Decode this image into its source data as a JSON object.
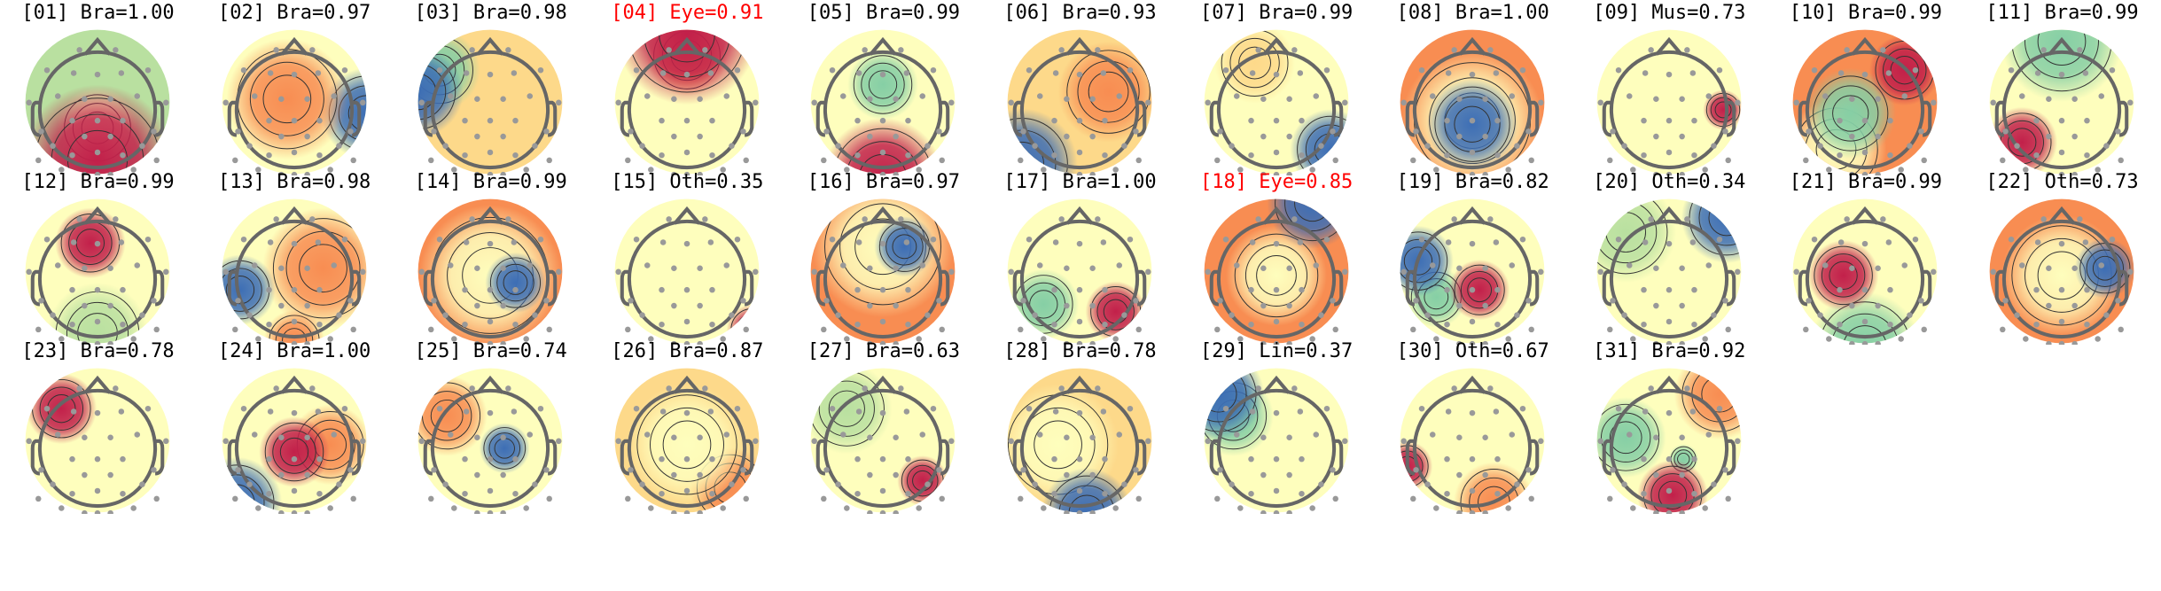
{
  "colors": {
    "normal_label": "#000000",
    "artifact_label": "#ff0000",
    "colormap": "RdYlBu_r / Spectral"
  },
  "components": [
    {
      "label": "[01] Bra=1.00",
      "class": "Bra",
      "score": 1.0,
      "artifact": false
    },
    {
      "label": "[02] Bra=0.97",
      "class": "Bra",
      "score": 0.97,
      "artifact": false
    },
    {
      "label": "[03] Bra=0.98",
      "class": "Bra",
      "score": 0.98,
      "artifact": false
    },
    {
      "label": "[04] Eye=0.91",
      "class": "Eye",
      "score": 0.91,
      "artifact": true
    },
    {
      "label": "[05] Bra=0.99",
      "class": "Bra",
      "score": 0.99,
      "artifact": false
    },
    {
      "label": "[06] Bra=0.93",
      "class": "Bra",
      "score": 0.93,
      "artifact": false
    },
    {
      "label": "[07] Bra=0.99",
      "class": "Bra",
      "score": 0.99,
      "artifact": false
    },
    {
      "label": "[08] Bra=1.00",
      "class": "Bra",
      "score": 1.0,
      "artifact": false
    },
    {
      "label": "[09] Mus=0.73",
      "class": "Mus",
      "score": 0.73,
      "artifact": false
    },
    {
      "label": "[10] Bra=0.99",
      "class": "Bra",
      "score": 0.99,
      "artifact": false
    },
    {
      "label": "[11] Bra=0.99",
      "class": "Bra",
      "score": 0.99,
      "artifact": false
    },
    {
      "label": "[12] Bra=0.99",
      "class": "Bra",
      "score": 0.99,
      "artifact": false
    },
    {
      "label": "[13] Bra=0.98",
      "class": "Bra",
      "score": 0.98,
      "artifact": false
    },
    {
      "label": "[14] Bra=0.99",
      "class": "Bra",
      "score": 0.99,
      "artifact": false
    },
    {
      "label": "[15] Oth=0.35",
      "class": "Oth",
      "score": 0.35,
      "artifact": false
    },
    {
      "label": "[16] Bra=0.97",
      "class": "Bra",
      "score": 0.97,
      "artifact": false
    },
    {
      "label": "[17] Bra=1.00",
      "class": "Bra",
      "score": 1.0,
      "artifact": false
    },
    {
      "label": "[18] Eye=0.85",
      "class": "Eye",
      "score": 0.85,
      "artifact": true
    },
    {
      "label": "[19] Bra=0.82",
      "class": "Bra",
      "score": 0.82,
      "artifact": false
    },
    {
      "label": "[20] Oth=0.34",
      "class": "Oth",
      "score": 0.34,
      "artifact": false
    },
    {
      "label": "[21] Bra=0.99",
      "class": "Bra",
      "score": 0.99,
      "artifact": false
    },
    {
      "label": "[22] Oth=0.73",
      "class": "Oth",
      "score": 0.73,
      "artifact": false
    },
    {
      "label": "[23] Bra=0.78",
      "class": "Bra",
      "score": 0.78,
      "artifact": false
    },
    {
      "label": "[24] Bra=1.00",
      "class": "Bra",
      "score": 1.0,
      "artifact": false
    },
    {
      "label": "[25] Bra=0.74",
      "class": "Bra",
      "score": 0.74,
      "artifact": false
    },
    {
      "label": "[26] Bra=0.87",
      "class": "Bra",
      "score": 0.87,
      "artifact": false
    },
    {
      "label": "[27] Bra=0.63",
      "class": "Bra",
      "score": 0.63,
      "artifact": false
    },
    {
      "label": "[28] Bra=0.78",
      "class": "Bra",
      "score": 0.78,
      "artifact": false
    },
    {
      "label": "[29] Lin=0.37",
      "class": "Lin",
      "score": 0.37,
      "artifact": false
    },
    {
      "label": "[30] Oth=0.67",
      "class": "Oth",
      "score": 0.67,
      "artifact": false
    },
    {
      "label": "[31] Bra=0.92",
      "class": "Bra",
      "score": 0.92,
      "artifact": false
    }
  ]
}
